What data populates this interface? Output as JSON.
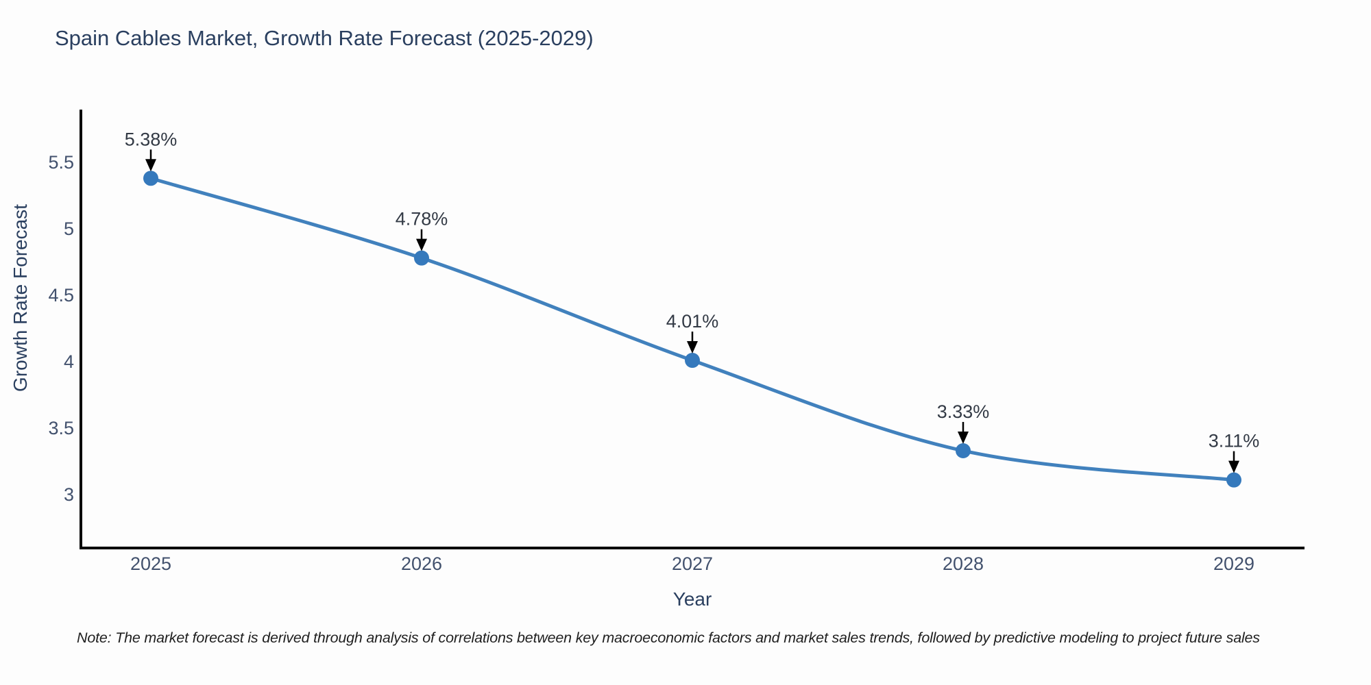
{
  "title": "Spain Cables Market, Growth Rate Forecast (2025-2029)",
  "note": "Note: The market forecast is derived through analysis of correlations between key macroeconomic factors and market sales trends, followed by predictive modeling to project future sales",
  "chart_data": {
    "type": "line",
    "title": "Spain Cables Market, Growth Rate Forecast (2025-2029)",
    "xlabel": "Year",
    "ylabel": "Growth Rate Forecast",
    "x": [
      2025,
      2026,
      2027,
      2028,
      2029
    ],
    "series": [
      {
        "name": "Growth Rate Forecast",
        "values": [
          5.38,
          4.78,
          4.01,
          3.33,
          3.11
        ]
      }
    ],
    "point_labels": [
      "5.38%",
      "4.78%",
      "4.01%",
      "3.33%",
      "3.11%"
    ],
    "yticks": [
      3,
      3.5,
      4,
      4.5,
      5,
      5.5
    ],
    "ylim": [
      2.6,
      5.9
    ],
    "grid": false,
    "legend": "none",
    "line_style": "spline-with-markers",
    "annotation_arrows": true,
    "colors": {
      "line": "#4181bd",
      "marker": "#3579bc",
      "arrow": "#000000",
      "axis_line": "#000000",
      "title_text": "#2a3f5f",
      "tick_text": "#42516d",
      "annotation_text": "#333a45",
      "background": "#fdfdfd"
    }
  }
}
